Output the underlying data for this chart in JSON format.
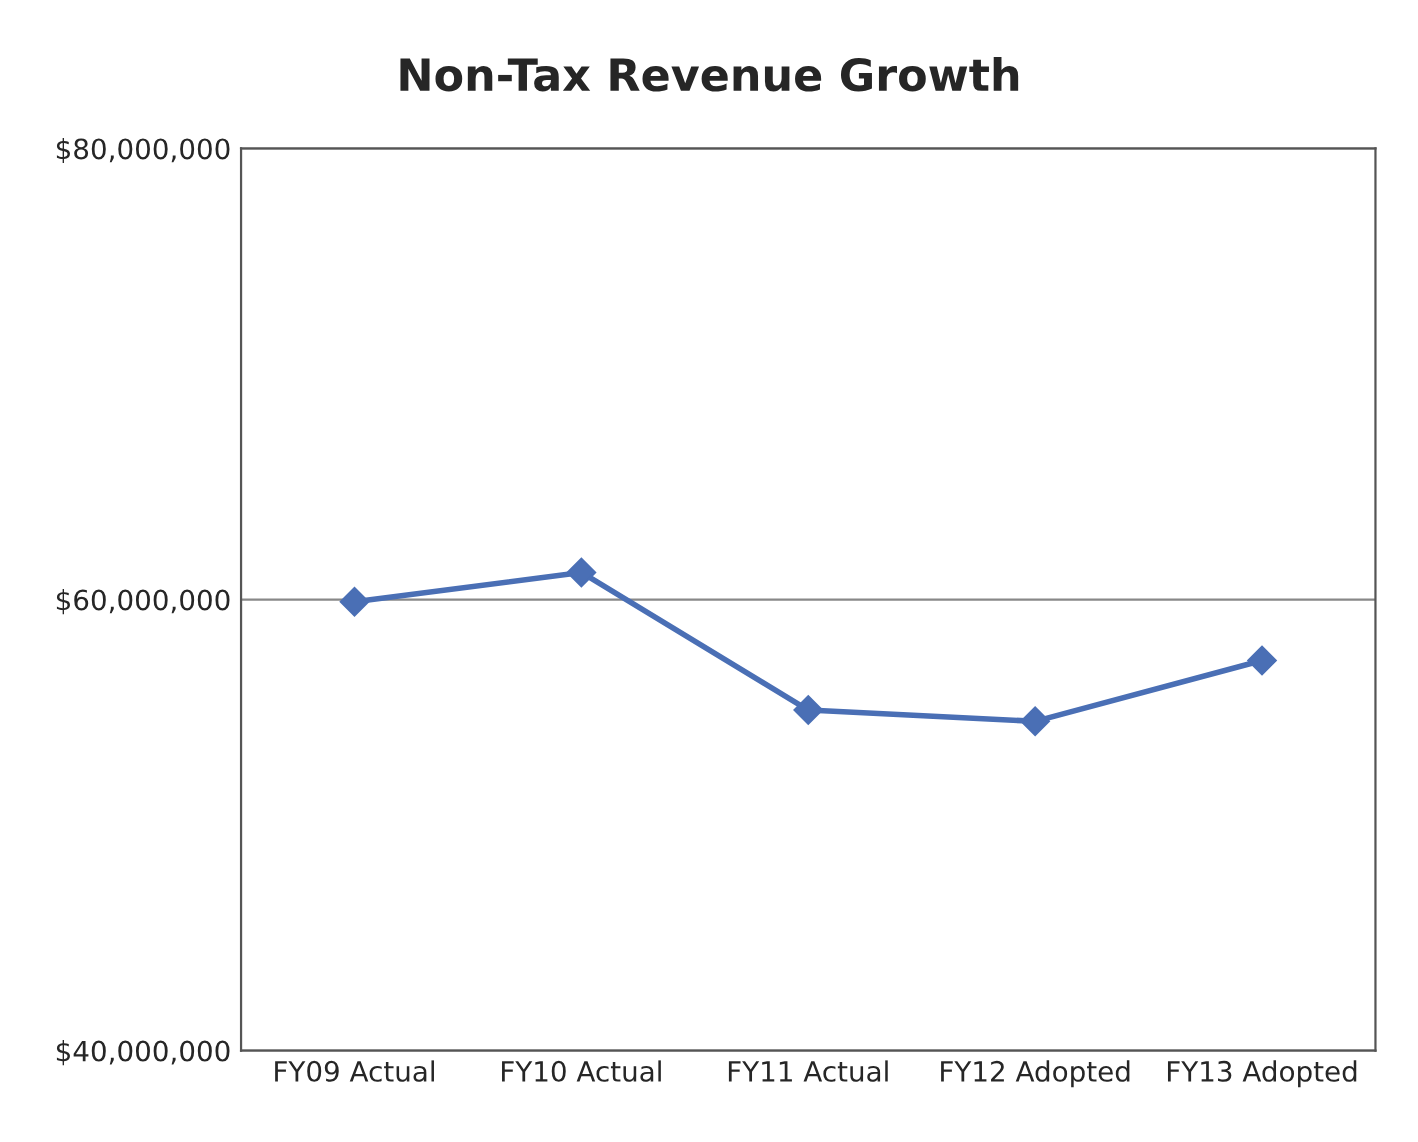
{
  "chart_data": {
    "type": "line",
    "title": "Non-Tax Revenue Growth",
    "categories": [
      "FY09 Actual",
      "FY10 Actual",
      "FY11 Actual",
      "FY12 Adopted",
      "FY13 Adopted"
    ],
    "series": [
      {
        "color": "#4a6fb5",
        "values": [
          59900000,
          61200000,
          55100000,
          54600000,
          57300000
        ]
      }
    ],
    "ylim": [
      40000000,
      80000000
    ],
    "yticks": [
      {
        "value": 40000000,
        "label": "$40,000,000"
      },
      {
        "value": 60000000,
        "label": "$60,000,000"
      },
      {
        "value": 80000000,
        "label": "$80,000,000"
      }
    ],
    "grid": "y",
    "marker": "diamond",
    "line_style": "solid"
  }
}
